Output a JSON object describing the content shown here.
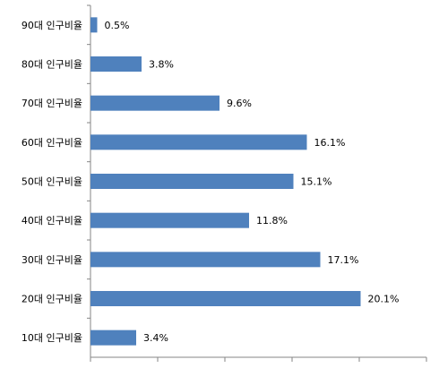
{
  "chart_data": {
    "type": "bar",
    "orientation": "horizontal",
    "categories": [
      "90대 인구비율",
      "80대 인구비율",
      "70대 인구비율",
      "60대 인구비율",
      "50대 인구비율",
      "40대 인구비율",
      "30대 인구비율",
      "20대 인구비율",
      "10대 인구비율"
    ],
    "values": [
      0.5,
      3.8,
      9.6,
      16.1,
      15.1,
      11.8,
      17.1,
      20.1,
      3.4
    ],
    "value_labels": [
      "0.5%",
      "3.8%",
      "9.6%",
      "16.1%",
      "15.1%",
      "11.8%",
      "17.1%",
      "20.1%",
      "3.4%"
    ],
    "color": "#4f81bd",
    "xlim": [
      0,
      25
    ],
    "xticks": [
      0,
      5,
      10,
      15,
      20,
      25
    ]
  }
}
